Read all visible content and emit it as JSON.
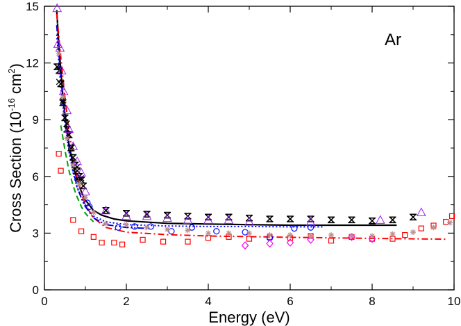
{
  "chart_data": {
    "type": "scatter",
    "title": "",
    "xlabel": "Energy (eV)",
    "ylabel": {
      "main": "Cross Section (10",
      "exp1": "-16",
      "mid": " cm",
      "exp2": "2",
      "end": ")"
    },
    "annotation": "Ar",
    "xlim": [
      0,
      10
    ],
    "ylim": [
      0,
      15
    ],
    "xticks": [
      0,
      2,
      4,
      6,
      8,
      10
    ],
    "xtick_labels": [
      "0",
      "2",
      "4",
      "6",
      "8",
      "10"
    ],
    "yticks": [
      0,
      3,
      6,
      9,
      12,
      15
    ],
    "ytick_labels": [
      "0",
      "3",
      "6",
      "9",
      "12",
      "15"
    ],
    "grid": false,
    "legend": "none",
    "series": [
      {
        "marker": "errorbar-cross",
        "color": "#000000",
        "points": [
          [
            0.31,
            11.8
          ],
          [
            0.36,
            11.6
          ],
          [
            0.4,
            10.9
          ],
          [
            0.45,
            9.9
          ],
          [
            0.5,
            9.1
          ],
          [
            0.55,
            8.5
          ],
          [
            0.6,
            8.2
          ],
          [
            0.65,
            7.5
          ],
          [
            0.7,
            7.0
          ],
          [
            0.75,
            6.6
          ],
          [
            0.8,
            6.3
          ],
          [
            0.85,
            6.0
          ],
          [
            0.9,
            5.8
          ],
          [
            0.95,
            5.5
          ],
          [
            1.5,
            4.2
          ],
          [
            2.0,
            4.05
          ],
          [
            2.5,
            4.0
          ],
          [
            3.0,
            3.95
          ],
          [
            3.5,
            3.9
          ],
          [
            4.0,
            3.85
          ],
          [
            4.5,
            3.85
          ],
          [
            5.0,
            3.8
          ],
          [
            5.5,
            3.75
          ],
          [
            6.0,
            3.75
          ],
          [
            6.5,
            3.75
          ],
          [
            7.0,
            3.7
          ],
          [
            7.5,
            3.7
          ],
          [
            8.0,
            3.65
          ],
          [
            8.5,
            3.7
          ],
          [
            9.0,
            3.85
          ]
        ]
      },
      {
        "marker": "x",
        "color": "#000000",
        "points": [
          [
            0.36,
            11.0
          ],
          [
            0.45,
            10.0
          ],
          [
            0.55,
            8.8
          ],
          [
            0.65,
            7.6
          ],
          [
            0.8,
            6.5
          ],
          [
            0.9,
            5.9
          ]
        ]
      },
      {
        "marker": "triangle",
        "color": "#a020f0",
        "points": [
          [
            0.31,
            14.9
          ],
          [
            0.33,
            13.0
          ],
          [
            0.38,
            12.8
          ],
          [
            0.42,
            11.6
          ],
          [
            0.47,
            10.5
          ],
          [
            0.55,
            9.5
          ],
          [
            0.6,
            8.5
          ],
          [
            0.7,
            7.6
          ],
          [
            0.8,
            6.8
          ],
          [
            0.9,
            6.2
          ],
          [
            1.0,
            5.2
          ],
          [
            1.5,
            4.2
          ],
          [
            2.0,
            3.9
          ],
          [
            2.5,
            3.9
          ],
          [
            3.0,
            3.8
          ],
          [
            3.5,
            3.7
          ],
          [
            4.0,
            3.7
          ],
          [
            4.5,
            3.7
          ],
          [
            5.0,
            3.6
          ],
          [
            6.5,
            3.6
          ],
          [
            8.2,
            3.7
          ],
          [
            9.2,
            4.1
          ]
        ]
      },
      {
        "marker": "square",
        "color": "#ff0000",
        "points": [
          [
            0.35,
            7.2
          ],
          [
            0.4,
            6.3
          ],
          [
            0.7,
            3.7
          ],
          [
            0.9,
            3.1
          ],
          [
            1.2,
            2.8
          ],
          [
            1.4,
            2.5
          ],
          [
            1.7,
            2.5
          ],
          [
            1.9,
            2.4
          ],
          [
            2.4,
            2.65
          ],
          [
            2.9,
            2.55
          ],
          [
            3.5,
            2.55
          ],
          [
            4.0,
            2.75
          ],
          [
            4.5,
            2.8
          ],
          [
            5.0,
            2.7
          ],
          [
            5.5,
            2.8
          ],
          [
            6.0,
            2.75
          ],
          [
            6.5,
            2.85
          ],
          [
            7.0,
            2.6
          ],
          [
            7.5,
            2.8
          ],
          [
            8.0,
            2.7
          ],
          [
            8.5,
            2.7
          ],
          [
            8.8,
            2.9
          ],
          [
            9.2,
            3.25
          ],
          [
            9.5,
            3.4
          ],
          [
            9.8,
            3.6
          ],
          [
            9.95,
            3.9
          ]
        ]
      },
      {
        "marker": "circle",
        "color": "#0000ff",
        "points": [
          [
            1.05,
            4.6
          ],
          [
            1.1,
            4.4
          ],
          [
            1.8,
            3.3
          ],
          [
            2.2,
            3.35
          ],
          [
            2.6,
            3.35
          ],
          [
            3.1,
            3.1
          ],
          [
            3.6,
            3.3
          ],
          [
            4.2,
            3.1
          ],
          [
            4.9,
            3.05
          ],
          [
            5.5,
            2.75
          ],
          [
            6.1,
            3.25
          ],
          [
            6.5,
            3.3
          ]
        ]
      },
      {
        "marker": "diamond",
        "color": "#ff00ff",
        "points": [
          [
            4.9,
            2.35
          ],
          [
            5.5,
            2.45
          ],
          [
            6.0,
            2.5
          ],
          [
            6.5,
            2.65
          ],
          [
            7.5,
            2.8
          ],
          [
            8.0,
            2.7
          ]
        ]
      },
      {
        "marker": "asterisk",
        "color": "#bc8f8f",
        "points": [
          [
            0.35,
            12.5
          ],
          [
            0.45,
            10.2
          ],
          [
            0.55,
            8.0
          ],
          [
            0.7,
            6.6
          ],
          [
            0.85,
            5.6
          ],
          [
            1.0,
            4.9
          ],
          [
            1.2,
            4.1
          ],
          [
            1.5,
            3.5
          ],
          [
            2.0,
            3.45
          ],
          [
            2.5,
            3.3
          ],
          [
            3.0,
            3.2
          ],
          [
            3.5,
            3.15
          ],
          [
            4.0,
            3.0
          ],
          [
            4.5,
            3.0
          ],
          [
            5.0,
            3.0
          ],
          [
            5.5,
            2.9
          ],
          [
            6.0,
            2.9
          ],
          [
            6.5,
            2.85
          ],
          [
            7.0,
            2.9
          ],
          [
            7.5,
            2.85
          ],
          [
            8.0,
            2.85
          ],
          [
            8.5,
            2.95
          ],
          [
            9.0,
            3.05
          ],
          [
            9.5,
            3.3
          ],
          [
            9.9,
            3.55
          ]
        ]
      }
    ],
    "curves": [
      {
        "style": "solid",
        "color": "#000000",
        "points": [
          [
            0.3,
            14.8
          ],
          [
            0.35,
            13.0
          ],
          [
            0.4,
            11.6
          ],
          [
            0.45,
            10.3
          ],
          [
            0.5,
            9.3
          ],
          [
            0.6,
            7.7
          ],
          [
            0.7,
            6.6
          ],
          [
            0.8,
            5.8
          ],
          [
            0.9,
            5.2
          ],
          [
            1.0,
            4.75
          ],
          [
            1.2,
            4.2
          ],
          [
            1.4,
            3.95
          ],
          [
            1.7,
            3.75
          ],
          [
            2.0,
            3.65
          ],
          [
            3.0,
            3.52
          ],
          [
            4.0,
            3.48
          ],
          [
            5.0,
            3.45
          ],
          [
            6.0,
            3.42
          ],
          [
            7.0,
            3.42
          ],
          [
            8.0,
            3.42
          ],
          [
            8.6,
            3.42
          ]
        ]
      },
      {
        "style": "dotted",
        "color": "#0000ff",
        "points": [
          [
            0.3,
            13.5
          ],
          [
            0.4,
            10.7
          ],
          [
            0.5,
            8.8
          ],
          [
            0.6,
            7.3
          ],
          [
            0.7,
            6.2
          ],
          [
            0.8,
            5.4
          ],
          [
            0.9,
            4.85
          ],
          [
            1.0,
            4.4
          ],
          [
            1.2,
            3.9
          ],
          [
            1.5,
            3.6
          ],
          [
            2.0,
            3.45
          ],
          [
            3.0,
            3.38
          ],
          [
            4.0,
            3.35
          ],
          [
            5.0,
            3.35
          ],
          [
            6.0,
            3.33
          ],
          [
            6.8,
            3.33
          ]
        ]
      },
      {
        "style": "dashed",
        "color": "#00a000",
        "points": [
          [
            0.4,
            8.7
          ],
          [
            0.5,
            7.4
          ],
          [
            0.6,
            6.3
          ],
          [
            0.7,
            5.5
          ],
          [
            0.8,
            4.9
          ],
          [
            0.9,
            4.4
          ],
          [
            1.0,
            4.05
          ],
          [
            1.1,
            3.8
          ],
          [
            1.2,
            3.6
          ]
        ]
      },
      {
        "style": "dashdot",
        "color": "#ff0000",
        "points": [
          [
            0.3,
            14.6
          ],
          [
            0.4,
            12.3
          ],
          [
            0.5,
            10.2
          ],
          [
            0.6,
            8.4
          ],
          [
            0.7,
            7.0
          ],
          [
            0.8,
            5.9
          ],
          [
            0.9,
            5.1
          ],
          [
            1.0,
            4.5
          ],
          [
            1.2,
            3.8
          ],
          [
            1.5,
            3.3
          ],
          [
            2.0,
            3.05
          ],
          [
            3.0,
            2.92
          ],
          [
            4.0,
            2.85
          ],
          [
            6.0,
            2.78
          ],
          [
            8.0,
            2.72
          ],
          [
            9.8,
            2.68
          ]
        ]
      },
      {
        "style": "dashdotdot",
        "color": "#0000cd",
        "points": [
          [
            0.3,
            14.0
          ],
          [
            0.4,
            11.2
          ],
          [
            0.5,
            9.1
          ],
          [
            0.6,
            7.5
          ],
          [
            0.7,
            6.3
          ],
          [
            0.8,
            5.45
          ],
          [
            0.9,
            4.85
          ],
          [
            1.0,
            4.4
          ],
          [
            1.2,
            3.8
          ],
          [
            1.5,
            3.45
          ],
          [
            2.0,
            3.3
          ],
          [
            2.5,
            3.25
          ]
        ]
      }
    ]
  }
}
